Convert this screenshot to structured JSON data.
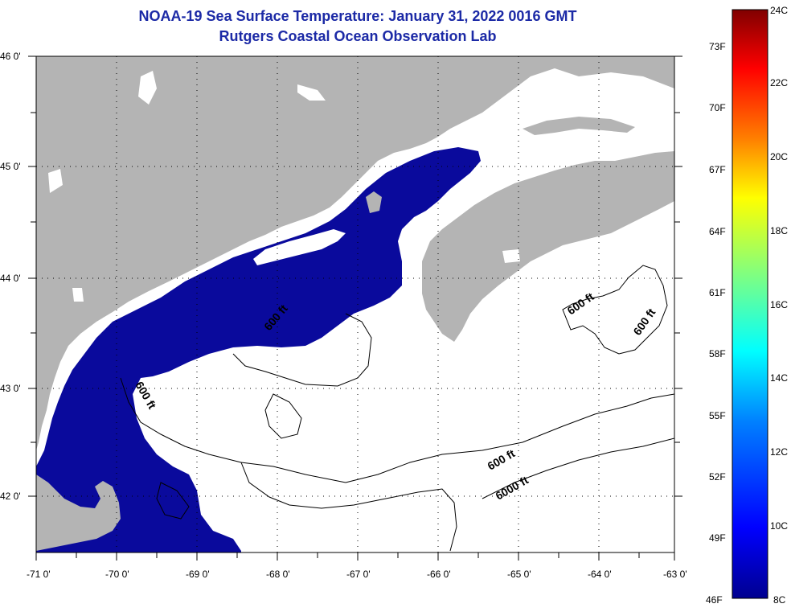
{
  "title_line1": "NOAA-19 Sea Surface Temperature:  January 31, 2022 0016 GMT",
  "title_line2": "Rutgers Coastal Ocean Observation Lab",
  "lat_labels": [
    "46 0'",
    "45 0'",
    "44 0'",
    "43 0'",
    "42 0'"
  ],
  "lon_labels": [
    "-71 0'",
    "-70 0'",
    "-69 0'",
    "-68 0'",
    "-67 0'",
    "-66 0'",
    "-65 0'",
    "-64 0'",
    "-63 0'"
  ],
  "colorbar": {
    "fahrenheit": [
      "73F",
      "70F",
      "67F",
      "64F",
      "61F",
      "58F",
      "55F",
      "52F",
      "49F",
      "46F"
    ],
    "celsius": [
      "24C",
      "22C",
      "20C",
      "18C",
      "16C",
      "14C",
      "12C",
      "10C",
      "8C"
    ],
    "colors": [
      "#00008f",
      "#0000ff",
      "#0080ff",
      "#00ffff",
      "#80ff80",
      "#ffff00",
      "#ff8000",
      "#ff0000",
      "#800000"
    ]
  },
  "contours": {
    "label_600_a": "600 ft",
    "label_600_b": "600 ft",
    "label_600_c": "600 ft",
    "label_600_d": "600 ft",
    "label_600_e": "600 ft",
    "label_6000": "6000 ft"
  },
  "colors": {
    "land": "#b4b4b4",
    "sst_cold": "#0a0a9c",
    "no_data": "#ffffff",
    "title": "#1c2aa6"
  }
}
